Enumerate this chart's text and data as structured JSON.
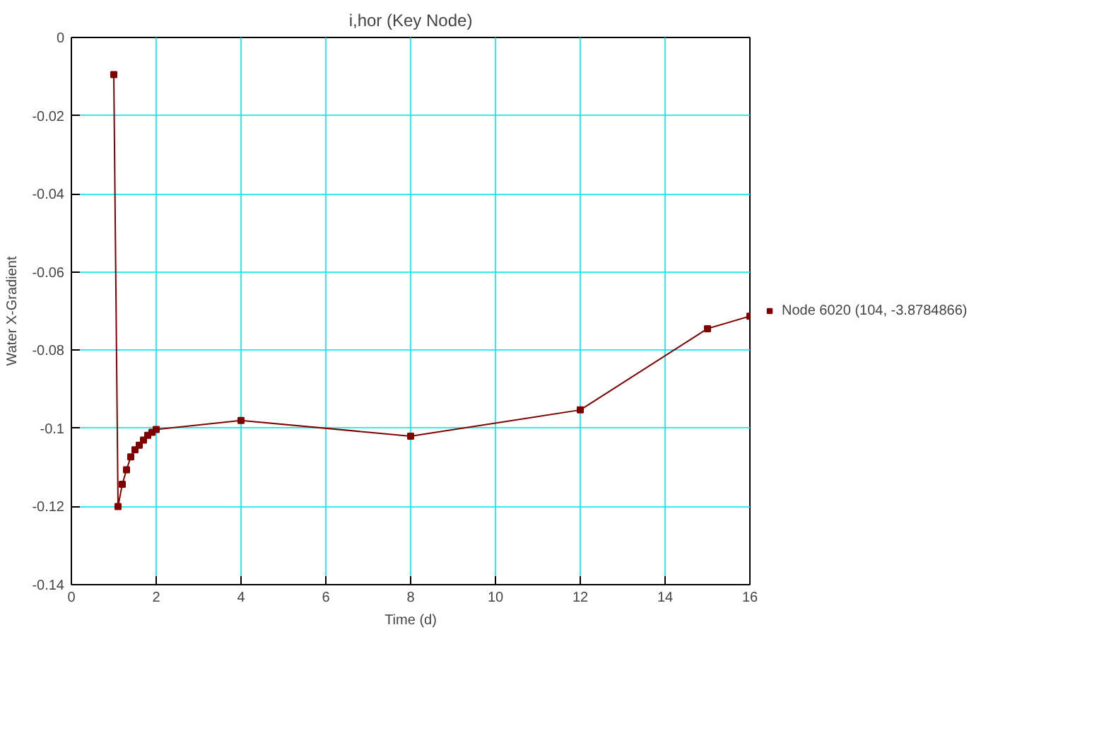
{
  "chart_data": {
    "type": "line",
    "title": "i,hor (Key Node)",
    "xlabel": "Time (d)",
    "ylabel": "Water X-Gradient",
    "x": [
      1.0,
      1.1,
      1.2,
      1.3,
      1.4,
      1.5,
      1.6,
      1.7,
      1.8,
      1.9,
      2.0,
      4,
      8,
      12,
      15,
      16
    ],
    "series": [
      {
        "name": "Node 6020 (104, -3.8784866)",
        "color": "#800000",
        "values": [
          -0.0095,
          -0.12,
          -0.1143,
          -0.1106,
          -0.1073,
          -0.1055,
          -0.1043,
          -0.103,
          -0.1018,
          -0.101,
          -0.1003,
          -0.098,
          -0.102,
          -0.0953,
          -0.0745,
          -0.0713
        ]
      }
    ],
    "xlim": [
      0,
      16
    ],
    "xticks": [
      0,
      2,
      4,
      6,
      8,
      10,
      12,
      14,
      16
    ],
    "ylim": [
      -0.14,
      0
    ],
    "yticks": [
      0,
      -0.02,
      -0.04,
      -0.06,
      -0.08,
      -0.1,
      -0.12,
      -0.14
    ],
    "grid": true,
    "legend": "right",
    "marker": "square",
    "line_style": "solid"
  }
}
